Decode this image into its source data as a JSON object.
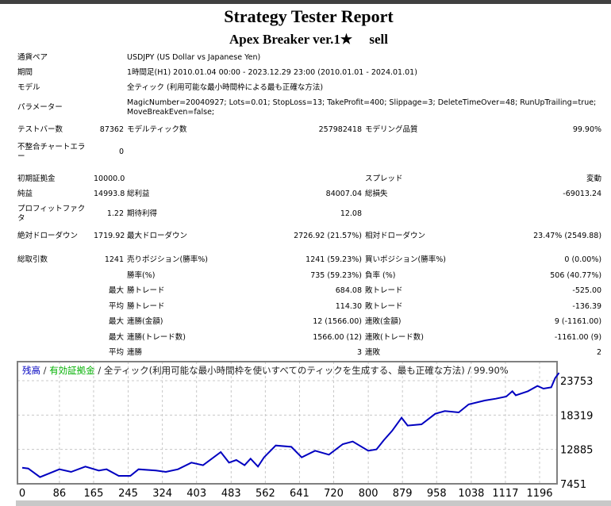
{
  "report": {
    "title": "Strategy Tester Report",
    "subtitle": "Apex Breaker ver.1★　 sell"
  },
  "info": {
    "symbol_label": "通貨ペア",
    "symbol": "USDJPY (US Dollar vs Japanese Yen)",
    "period_label": "期間",
    "period": "1時間足(H1) 2010.01.04 00:00 - 2023.12.29 23:00 (2010.01.01 - 2024.01.01)",
    "model_label": "モデル",
    "model": "全ティック (利用可能な最小時間枠による最も正確な方法)",
    "params_label": "パラメーター",
    "params": "MagicNumber=20040927; Lots=0.01; StopLoss=13; TakeProfit=400; Slippage=3; DeleteTimeOver=48; RunUpTrailing=true; MoveBreakEven=false;"
  },
  "stats": {
    "bars_label": "テストバー数",
    "bars": "87362",
    "ticks_label": "モデルティック数",
    "ticks": "257982418",
    "quality_label": "モデリング品質",
    "quality": "99.90%",
    "mismatch_label": "不整合チャートエラー",
    "mismatch": "0",
    "deposit_label": "初期証拠金",
    "deposit": "10000.00",
    "spread_label": "スプレッド",
    "spread": "変動",
    "net_label": "純益",
    "net": "14993.80",
    "gross_profit_label": "総利益",
    "gross_profit": "84007.04",
    "gross_loss_label": "総損失",
    "gross_loss": "-69013.24",
    "pf_label": "プロフィットファクタ",
    "pf": "1.22",
    "expected_label": "期待利得",
    "expected": "12.08",
    "abs_dd_label": "絶対ドローダウン",
    "abs_dd": "1719.92",
    "max_dd_label": "最大ドローダウン",
    "max_dd": "2726.92 (21.57%)",
    "rel_dd_label": "相対ドローダウン",
    "rel_dd": "23.47% (2549.88)",
    "trades_label": "総取引数",
    "trades": "1241",
    "short_label": "売りポジション(勝率%)",
    "short": "1241 (59.23%)",
    "long_label": "買いポジション(勝率%)",
    "long": "0 (0.00%)",
    "win_label": "勝率(%)",
    "win": "735 (59.23%)",
    "loss_label": "負率 (%)",
    "loss": "506 (40.77%)",
    "max_label": "最大",
    "avg_label": "平均",
    "win_trade_label": "勝トレード",
    "largest_win": "684.08",
    "loss_trade_label": "敗トレード",
    "largest_loss": "-525.00",
    "avg_win": "114.30",
    "avg_loss": "-136.39",
    "cons_win_money_label": "連勝(金額)",
    "cons_win_money": "12 (1566.00)",
    "cons_loss_money_label": "連敗(金額)",
    "cons_loss_money": "9 (-1161.00)",
    "cons_win_count_label": "連勝(トレード数)",
    "cons_win_count": "1566.00 (12)",
    "cons_loss_count_label": "連敗(トレード数)",
    "cons_loss_count": "-1161.00 (9)",
    "avg_cons_win_label": "連勝",
    "avg_cons_win": "3",
    "avg_cons_loss_label": "連敗",
    "avg_cons_loss": "2"
  },
  "chart_data": {
    "type": "line",
    "legend": {
      "balance": "残高",
      "sep1": " / ",
      "equity": "有効証拠金",
      "rest": " / 全ティック(利用可能な最小時間枠を使いすべてのティックを生成する、最も正確な方法) / 99.90%"
    },
    "colors": {
      "balance": "#0000c0",
      "equity": "#00b000",
      "grid": "#c8c8c8",
      "frame": "#808080"
    },
    "x_ticks": [
      "0",
      "86",
      "165",
      "245",
      "324",
      "403",
      "483",
      "562",
      "641",
      "720",
      "800",
      "879",
      "958",
      "1038",
      "1117",
      "1196"
    ],
    "y_ticks": [
      "23753",
      "18319",
      "12885",
      "7451"
    ],
    "ylim": [
      7451,
      26600
    ],
    "xlim": [
      0,
      1260
    ],
    "grid": true,
    "series": [
      {
        "name": "残高",
        "x": [
          0,
          14,
          41,
          86,
          113,
          146,
          177,
          195,
          223,
          250,
          269,
          309,
          332,
          360,
          391,
          418,
          459,
          478,
          495,
          514,
          528,
          545,
          559,
          586,
          622,
          646,
          677,
          709,
          741,
          764,
          800,
          819,
          836,
          855,
          877,
          891,
          923,
          955,
          977,
          1009,
          1032,
          1069,
          1095,
          1119,
          1133,
          1141,
          1169,
          1191,
          1205,
          1223,
          1232,
          1241
        ],
        "y": [
          10000,
          9875,
          8500,
          9750,
          9330,
          10170,
          9540,
          9750,
          8700,
          8700,
          9750,
          9540,
          9330,
          9750,
          10800,
          10380,
          12470,
          10800,
          11210,
          10380,
          11420,
          10170,
          11630,
          13510,
          13300,
          11630,
          12680,
          12050,
          13720,
          14140,
          12680,
          12890,
          14350,
          15810,
          17900,
          16650,
          16860,
          18530,
          18950,
          18740,
          20000,
          20620,
          20910,
          21240,
          22080,
          21450,
          22080,
          22920,
          22500,
          22710,
          24170,
          24994
        ]
      }
    ]
  }
}
